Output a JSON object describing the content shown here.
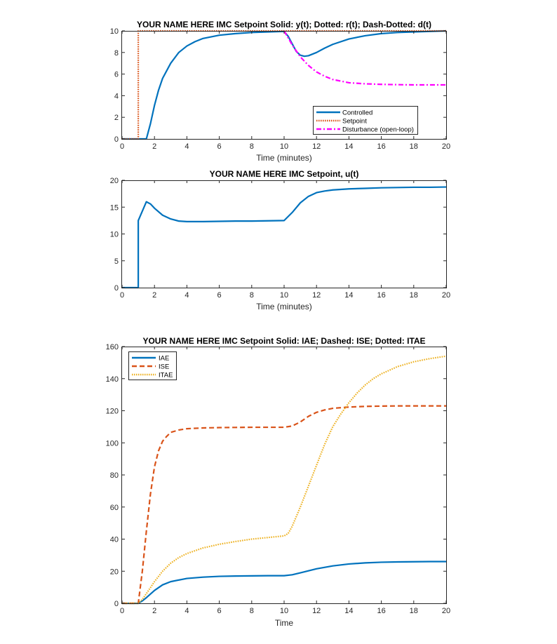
{
  "colors": {
    "blue": "#0072BD",
    "orange": "#D95319",
    "yellow": "#EDB120",
    "magenta": "#FF00FF",
    "axis": "#262626"
  },
  "chart_data": [
    {
      "type": "line",
      "title": "YOUR NAME HERE IMC Setpoint Solid: y(t); Dotted: r(t); Dash-Dotted: d(t)",
      "xlabel": "Time (minutes)",
      "ylabel": "",
      "xlim": [
        0,
        20
      ],
      "ylim": [
        0,
        10
      ],
      "xticks": [
        "0",
        "2",
        "4",
        "6",
        "8",
        "10",
        "12",
        "14",
        "16",
        "18",
        "20"
      ],
      "yticks": [
        "0",
        "2",
        "4",
        "6",
        "8",
        "10"
      ],
      "grid": false,
      "legend_position": "bottom-right",
      "series": [
        {
          "name": "Controlled",
          "style": "solid",
          "color": "#0072BD",
          "x": [
            0,
            1.5,
            1.75,
            2,
            2.25,
            2.5,
            3,
            3.5,
            4,
            4.5,
            5,
            6,
            7,
            8,
            9,
            10,
            10.25,
            10.5,
            10.75,
            11,
            11.25,
            11.5,
            12,
            12.5,
            13,
            14,
            15,
            16,
            17,
            18,
            19,
            20
          ],
          "y": [
            0,
            0,
            1.4,
            3.1,
            4.5,
            5.6,
            7.0,
            8.0,
            8.6,
            9.0,
            9.3,
            9.6,
            9.75,
            9.85,
            9.9,
            9.95,
            9.5,
            8.8,
            8.1,
            7.75,
            7.65,
            7.7,
            8.0,
            8.4,
            8.75,
            9.25,
            9.55,
            9.75,
            9.85,
            9.9,
            9.95,
            10.0
          ]
        },
        {
          "name": "Setpoint",
          "style": "dotted",
          "color": "#D95319",
          "x": [
            0,
            1,
            1,
            20
          ],
          "y": [
            0,
            0,
            10,
            10
          ]
        },
        {
          "name": "Disturbance (open-loop)",
          "style": "dash-dot",
          "color": "#FF00FF",
          "x": [
            10,
            10.5,
            11,
            11.5,
            12,
            12.5,
            13,
            14,
            15,
            16,
            17,
            18,
            19,
            20
          ],
          "y": [
            10,
            8.7,
            7.6,
            6.8,
            6.2,
            5.8,
            5.5,
            5.2,
            5.1,
            5.05,
            5.02,
            5.0,
            5.0,
            5.0
          ]
        }
      ]
    },
    {
      "type": "line",
      "title": "YOUR NAME HERE IMC Setpoint, u(t)",
      "xlabel": "Time (minutes)",
      "ylabel": "",
      "xlim": [
        0,
        20
      ],
      "ylim": [
        0,
        20
      ],
      "xticks": [
        "0",
        "2",
        "4",
        "6",
        "8",
        "10",
        "12",
        "14",
        "16",
        "18",
        "20"
      ],
      "yticks": [
        "0",
        "5",
        "10",
        "15",
        "20"
      ],
      "grid": false,
      "series": [
        {
          "style": "solid",
          "color": "#0072BD",
          "x": [
            0,
            1,
            1,
            1.5,
            1.75,
            2,
            2.5,
            3,
            3.5,
            4,
            5,
            6,
            7,
            8,
            9,
            10,
            10.5,
            11,
            11.5,
            12,
            12.5,
            13,
            14,
            15,
            16,
            17,
            18,
            19,
            20
          ],
          "y": [
            0,
            0,
            12.5,
            16.0,
            15.6,
            14.8,
            13.5,
            12.8,
            12.4,
            12.3,
            12.3,
            12.35,
            12.4,
            12.4,
            12.45,
            12.5,
            14.0,
            15.8,
            17.0,
            17.7,
            18.0,
            18.2,
            18.4,
            18.5,
            18.6,
            18.65,
            18.7,
            18.7,
            18.75
          ]
        }
      ]
    },
    {
      "type": "line",
      "title": "YOUR NAME HERE IMC Setpoint Solid: IAE; Dashed: ISE; Dotted: ITAE",
      "xlabel": "Time",
      "ylabel": "",
      "xlim": [
        0,
        20
      ],
      "ylim": [
        0,
        160
      ],
      "xticks": [
        "0",
        "2",
        "4",
        "6",
        "8",
        "10",
        "12",
        "14",
        "16",
        "18",
        "20"
      ],
      "yticks": [
        "0",
        "20",
        "40",
        "60",
        "80",
        "100",
        "120",
        "140",
        "160"
      ],
      "grid": false,
      "legend_position": "top-left",
      "series": [
        {
          "name": "IAE",
          "style": "solid",
          "color": "#0072BD",
          "x": [
            0,
            1,
            1.25,
            1.5,
            2,
            2.5,
            3,
            4,
            5,
            6,
            7,
            8,
            9,
            10,
            10.5,
            11,
            12,
            13,
            14,
            15,
            16,
            17,
            18,
            19,
            20
          ],
          "y": [
            0,
            0,
            1.5,
            3.5,
            8.0,
            11.5,
            13.5,
            15.5,
            16.3,
            16.8,
            17.0,
            17.1,
            17.2,
            17.2,
            17.8,
            19.0,
            21.5,
            23.3,
            24.5,
            25.2,
            25.6,
            25.8,
            25.9,
            26.0,
            26.0
          ]
        },
        {
          "name": "ISE",
          "style": "dashed",
          "color": "#D95319",
          "x": [
            0,
            1,
            1.25,
            1.5,
            1.75,
            2,
            2.25,
            2.5,
            2.75,
            3,
            3.5,
            4,
            5,
            6,
            7,
            8,
            9,
            10,
            10.5,
            11,
            11.5,
            12,
            12.5,
            13,
            14,
            15,
            16,
            17,
            18,
            19,
            20
          ],
          "y": [
            0,
            0,
            20,
            45,
            68,
            85,
            95,
            101,
            104,
            106.5,
            108,
            108.8,
            109.3,
            109.5,
            109.6,
            109.7,
            109.7,
            109.7,
            110.5,
            113,
            116.5,
            119,
            120.5,
            121.5,
            122.3,
            122.7,
            122.9,
            123.0,
            123.0,
            123.0,
            123.0
          ]
        },
        {
          "name": "ITAE",
          "style": "dotted",
          "color": "#EDB120",
          "x": [
            0,
            1,
            1.25,
            1.5,
            2,
            2.5,
            3,
            3.5,
            4,
            5,
            6,
            7,
            8,
            9,
            10,
            10.25,
            10.5,
            11,
            11.5,
            12,
            12.5,
            13,
            13.5,
            14,
            14.5,
            15,
            15.5,
            16,
            17,
            18,
            19,
            20
          ],
          "y": [
            0,
            0,
            2.5,
            6,
            13.5,
            20,
            25,
            28.5,
            31,
            34.5,
            36.8,
            38.5,
            40,
            41,
            42,
            43.5,
            48,
            60,
            73,
            86,
            99,
            110,
            118,
            125,
            131,
            136,
            140,
            143,
            147.5,
            150.5,
            152.5,
            154
          ]
        }
      ]
    }
  ]
}
